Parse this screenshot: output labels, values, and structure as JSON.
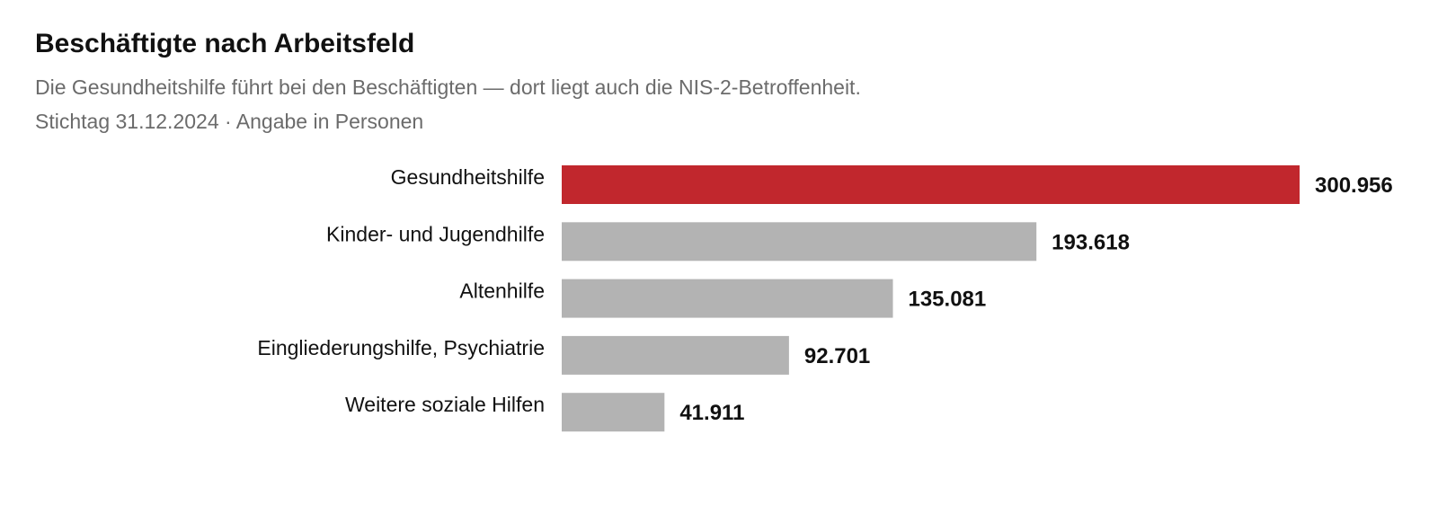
{
  "chart_data": {
    "type": "bar",
    "orientation": "horizontal",
    "title": "Beschäftigte nach Arbeitsfeld",
    "subtitle": "Die Gesundheitshilfe führt bei den Beschäftigten — dort liegt auch die NIS-2-Betroffenheit.",
    "note": "Stichtag 31.12.2024 · Angabe in Personen",
    "categories": [
      "Gesundheitshilfe",
      "Kinder- und Jugendhilfe",
      "Altenhilfe",
      "Eingliederungshilfe, Psychiatrie",
      "Weitere soziale Hilfen"
    ],
    "values": [
      300956,
      193618,
      135081,
      92701,
      41911
    ],
    "value_labels": [
      "300.956",
      "193.618",
      "135.081",
      "92.701",
      "41.911"
    ],
    "highlight_index": 0,
    "colors": {
      "highlight": "#c1272d",
      "default": "#b3b3b3"
    },
    "xlim": [
      0,
      300956
    ],
    "grid": false,
    "legend": "none"
  }
}
